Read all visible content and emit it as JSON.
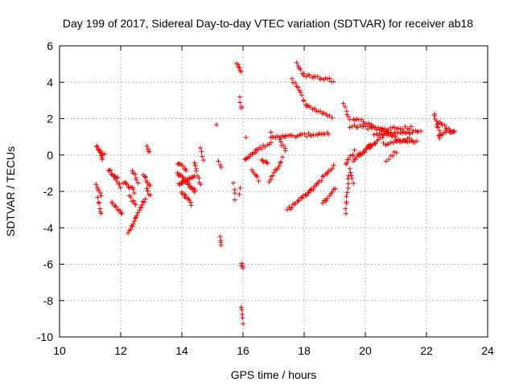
{
  "chart_data": {
    "type": "scatter",
    "title": "Day 199 of 2017, Sidereal Day-to-day VTEC variation (SDTVAR) for receiver ab18",
    "xlabel": "GPS time / hours",
    "ylabel": "SDTVAR / TECUs",
    "xlim": [
      10,
      24
    ],
    "ylim": [
      -10,
      6
    ],
    "xticks": [
      "10",
      "12",
      "14",
      "16",
      "18",
      "20",
      "22",
      "24"
    ],
    "yticks": [
      "-10",
      "-8",
      "-6",
      "-4",
      "-2",
      "0",
      "2",
      "4",
      "6"
    ],
    "grid": true,
    "marker_color": "#ff0000",
    "marker": "plus",
    "segments": [
      [
        11.2,
        0.5,
        11.4,
        -0.2,
        8
      ],
      [
        11.3,
        0.2,
        11.45,
        0.0,
        6
      ],
      [
        11.2,
        -1.6,
        11.35,
        -2.2,
        6
      ],
      [
        11.25,
        -2.4,
        11.35,
        -3.2,
        6
      ],
      [
        11.6,
        -0.8,
        11.9,
        -1.3,
        10
      ],
      [
        11.8,
        -1.2,
        12.0,
        -1.8,
        6
      ],
      [
        11.7,
        -2.6,
        12.05,
        -3.3,
        10
      ],
      [
        12.1,
        -1.5,
        12.45,
        -2.0,
        10
      ],
      [
        12.25,
        -4.3,
        12.8,
        -2.4,
        18
      ],
      [
        12.4,
        -0.8,
        12.55,
        -1.5,
        6
      ],
      [
        12.3,
        -2.3,
        12.5,
        -2.8,
        6
      ],
      [
        12.75,
        -1.1,
        12.95,
        -1.7,
        8
      ],
      [
        12.85,
        -1.8,
        12.95,
        -2.3,
        4
      ],
      [
        12.85,
        0.5,
        12.95,
        0.1,
        4
      ],
      [
        13.85,
        -0.4,
        14.15,
        -0.9,
        8
      ],
      [
        13.85,
        -1.0,
        14.45,
        -2.0,
        22
      ],
      [
        13.9,
        -1.6,
        14.4,
        -1.2,
        16
      ],
      [
        14.0,
        -2.0,
        14.3,
        -2.7,
        10
      ],
      [
        14.4,
        -0.4,
        14.6,
        -1.6,
        8
      ],
      [
        14.6,
        0.3,
        14.7,
        -0.2,
        4
      ],
      [
        15.15,
        1.6,
        15.15,
        1.6,
        1
      ],
      [
        15.2,
        -0.4,
        15.3,
        -0.6,
        3
      ],
      [
        15.25,
        -4.5,
        15.3,
        -4.9,
        4
      ],
      [
        15.7,
        -1.5,
        15.75,
        -2.5,
        4
      ],
      [
        15.9,
        -1.8,
        15.9,
        -2.1,
        2
      ],
      [
        15.8,
        5.0,
        15.95,
        4.6,
        6
      ],
      [
        15.9,
        3.2,
        15.95,
        2.5,
        4
      ],
      [
        15.95,
        -5.9,
        16.0,
        -6.3,
        4
      ],
      [
        15.95,
        -8.3,
        16.0,
        -9.2,
        5
      ],
      [
        16.1,
        0.9,
        16.1,
        0.9,
        1
      ],
      [
        16.05,
        -0.3,
        16.4,
        0.2,
        10
      ],
      [
        16.4,
        0.2,
        16.9,
        0.7,
        10
      ],
      [
        16.3,
        -0.8,
        16.5,
        -1.4,
        6
      ],
      [
        16.6,
        -0.2,
        16.8,
        -0.5,
        6
      ],
      [
        16.85,
        -1.4,
        17.3,
        -0.2,
        12
      ],
      [
        16.9,
        0.9,
        17.4,
        1.1,
        10
      ],
      [
        16.9,
        1.3,
        16.9,
        1.3,
        1
      ],
      [
        17.4,
        1.0,
        18.8,
        1.2,
        24
      ],
      [
        17.2,
        0.8,
        17.4,
        0.2,
        6
      ],
      [
        17.45,
        -3.0,
        18.2,
        -2.0,
        18
      ],
      [
        18.2,
        -2.0,
        18.95,
        -0.6,
        18
      ],
      [
        18.6,
        -2.7,
        19.0,
        -1.8,
        10
      ],
      [
        17.6,
        4.2,
        18.1,
        2.7,
        12
      ],
      [
        18.1,
        2.7,
        18.9,
        2.1,
        14
      ],
      [
        17.75,
        5.0,
        18.0,
        4.4,
        6
      ],
      [
        18.0,
        4.4,
        18.95,
        4.1,
        16
      ],
      [
        19.3,
        2.9,
        19.5,
        1.9,
        6
      ],
      [
        19.35,
        -0.5,
        19.65,
        0.2,
        8
      ],
      [
        19.45,
        -1.1,
        19.35,
        -3.2,
        10
      ],
      [
        19.5,
        -0.8,
        19.6,
        -1.5,
        5
      ],
      [
        19.5,
        1.6,
        20.2,
        1.5,
        12
      ],
      [
        19.6,
        2.0,
        20.2,
        1.7,
        10
      ],
      [
        19.6,
        -0.3,
        20.2,
        0.6,
        14
      ],
      [
        19.8,
        0.0,
        20.6,
        1.0,
        16
      ],
      [
        20.2,
        1.6,
        21.0,
        1.0,
        18
      ],
      [
        20.3,
        1.1,
        21.8,
        1.3,
        28
      ],
      [
        20.5,
        1.4,
        21.5,
        1.5,
        16
      ],
      [
        20.6,
        0.6,
        21.5,
        0.9,
        16
      ],
      [
        21.0,
        0.8,
        21.7,
        0.7,
        12
      ],
      [
        21.0,
        0.2,
        20.7,
        -0.3,
        6
      ],
      [
        22.25,
        2.3,
        22.45,
        1.0,
        10
      ],
      [
        22.4,
        1.8,
        22.9,
        1.2,
        12
      ],
      [
        22.4,
        1.1,
        22.9,
        1.4,
        10
      ]
    ]
  }
}
